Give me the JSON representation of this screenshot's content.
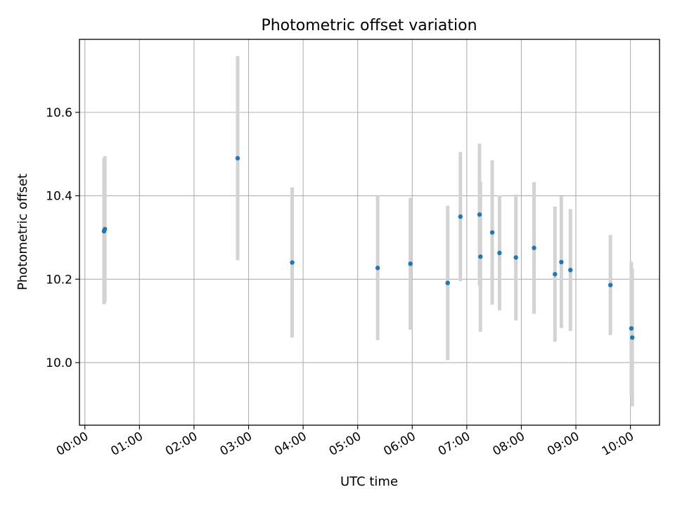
{
  "chart_data": {
    "type": "scatter",
    "title": "Photometric offset variation",
    "xlabel": "UTC time",
    "ylabel": "Photometric offset",
    "xlim": [
      "23:54",
      "10:32"
    ],
    "ylim": [
      9.85,
      10.775
    ],
    "grid": true,
    "x_ticks": [
      "00:00",
      "01:00",
      "02:00",
      "03:00",
      "04:00",
      "05:00",
      "06:00",
      "07:00",
      "08:00",
      "09:00",
      "10:00"
    ],
    "y_ticks": [
      10.0,
      10.2,
      10.4,
      10.6
    ],
    "y_tick_labels": [
      "10.0",
      "10.2",
      "10.4",
      "10.6"
    ],
    "point_color": "#1f77b4",
    "errorbar_color": "#d3d3d3",
    "points": [
      {
        "x": "00:21",
        "y": 10.315,
        "yerr": 0.175
      },
      {
        "x": "00:22",
        "y": 10.32,
        "yerr": 0.175
      },
      {
        "x": "02:48",
        "y": 10.49,
        "yerr": 0.245
      },
      {
        "x": "03:48",
        "y": 10.24,
        "yerr": 0.18
      },
      {
        "x": "05:22",
        "y": 10.227,
        "yerr": 0.173
      },
      {
        "x": "05:58",
        "y": 10.237,
        "yerr": 0.158
      },
      {
        "x": "06:39",
        "y": 10.191,
        "yerr": 0.185
      },
      {
        "x": "06:53",
        "y": 10.35,
        "yerr": 0.155
      },
      {
        "x": "07:14",
        "y": 10.355,
        "yerr": 0.17
      },
      {
        "x": "07:15",
        "y": 10.254,
        "yerr": 0.18
      },
      {
        "x": "07:28",
        "y": 10.312,
        "yerr": 0.173
      },
      {
        "x": "07:36",
        "y": 10.263,
        "yerr": 0.138
      },
      {
        "x": "07:54",
        "y": 10.252,
        "yerr": 0.151
      },
      {
        "x": "08:14",
        "y": 10.275,
        "yerr": 0.158
      },
      {
        "x": "08:37",
        "y": 10.212,
        "yerr": 0.162
      },
      {
        "x": "08:44",
        "y": 10.241,
        "yerr": 0.158
      },
      {
        "x": "08:54",
        "y": 10.222,
        "yerr": 0.146
      },
      {
        "x": "09:38",
        "y": 10.186,
        "yerr": 0.12
      },
      {
        "x": "10:01",
        "y": 10.082,
        "yerr": 0.16
      },
      {
        "x": "10:02",
        "y": 10.06,
        "yerr": 0.165
      }
    ]
  }
}
